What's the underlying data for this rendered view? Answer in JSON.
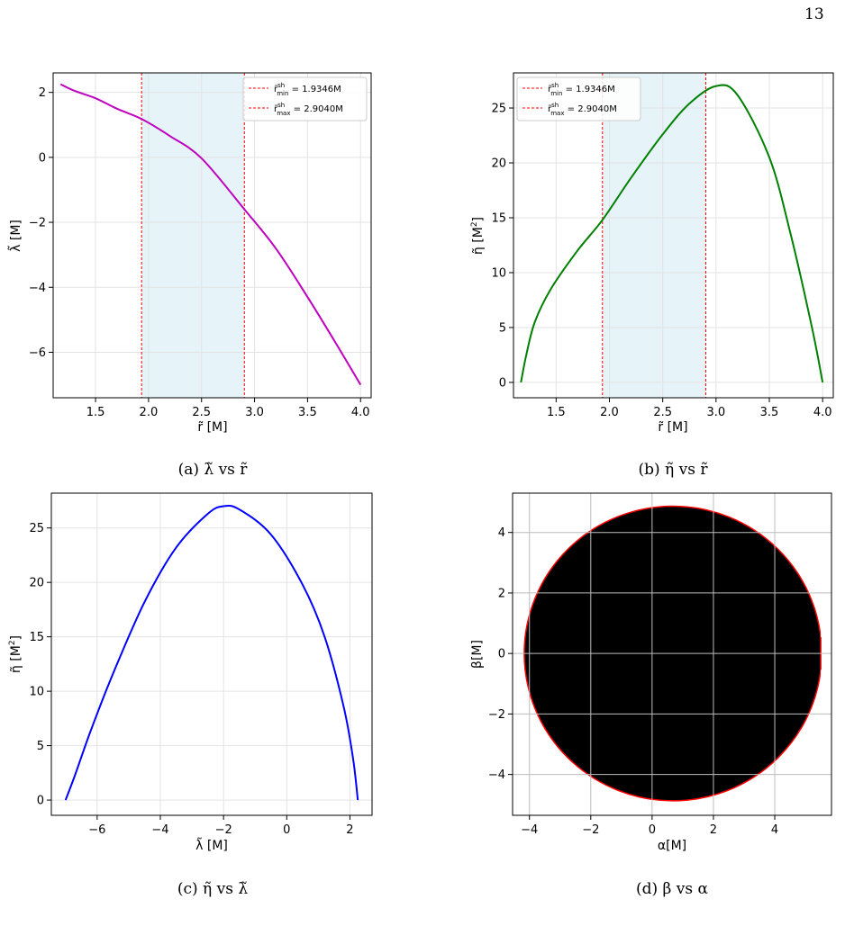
{
  "page_number": "13",
  "subfigures": [
    {
      "label": "(a)",
      "caption_y": "λ̃",
      "caption_x": "r̃"
    },
    {
      "label": "(b)",
      "caption_y": "η̃",
      "caption_x": "r̃"
    },
    {
      "label": "(c)",
      "caption_y": "η̃",
      "caption_x": "λ̃"
    },
    {
      "label": "(d)",
      "caption_y": "β",
      "caption_x": "α"
    }
  ],
  "caption_connector": "vs",
  "chart_data": [
    {
      "id": "a",
      "type": "line",
      "xlabel": "r̃ [M]",
      "ylabel": "λ̃ [M]",
      "xlim": [
        1.1,
        4.1
      ],
      "ylim": [
        -7.4,
        2.6
      ],
      "xticks": [
        1.5,
        2.0,
        2.5,
        3.0,
        3.5,
        4.0
      ],
      "yticks": [
        2,
        0,
        -2,
        -4,
        -6
      ],
      "grid": true,
      "line_color": "#bf00bf",
      "shaded_band": {
        "from": 1.9346,
        "to": 2.904,
        "color": "#e6f3f8"
      },
      "vlines": [
        {
          "x": 1.9346,
          "label_main": "r̃",
          "label_sup": "sh",
          "label_sub": "min",
          "label_value": " = 1.9346M",
          "color": "#ff0000"
        },
        {
          "x": 2.904,
          "label_main": "r̃",
          "label_sup": "sh",
          "label_sub": "max",
          "label_value": " = 2.9040M",
          "color": "#ff0000"
        }
      ],
      "legend_position": "top-right",
      "x": [
        1.17,
        1.3,
        1.5,
        1.7,
        1.9346,
        2.2,
        2.5,
        2.904,
        3.2,
        3.5,
        3.8,
        4.0
      ],
      "y": [
        2.25,
        2.05,
        1.82,
        1.5,
        1.18,
        0.66,
        -0.03,
        -1.6,
        -2.8,
        -4.3,
        -5.9,
        -7.0
      ]
    },
    {
      "id": "b",
      "type": "line",
      "xlabel": "r̃ [M]",
      "ylabel": "η̃ [M2]",
      "ylabel_main": "η̃ [M",
      "ylabel_sup": "2",
      "ylabel_end": "]",
      "xlim": [
        1.1,
        4.1
      ],
      "ylim": [
        -1.4,
        28.2
      ],
      "xticks": [
        1.5,
        2.0,
        2.5,
        3.0,
        3.5,
        4.0
      ],
      "yticks": [
        0,
        5,
        10,
        15,
        20,
        25
      ],
      "grid": true,
      "line_color": "#008000",
      "shaded_band": {
        "from": 1.9346,
        "to": 2.904,
        "color": "#e6f3f8"
      },
      "vlines": [
        {
          "x": 1.9346,
          "label_main": "r̃",
          "label_sup": "sh",
          "label_sub": "min",
          "label_value": " = 1.9346M",
          "color": "#ff0000"
        },
        {
          "x": 2.904,
          "label_main": "r̃",
          "label_sup": "sh",
          "label_sub": "max",
          "label_value": " = 2.9040M",
          "color": "#ff0000"
        }
      ],
      "legend_position": "top-left",
      "x": [
        1.17,
        1.22,
        1.3,
        1.45,
        1.7,
        1.9346,
        2.2,
        2.5,
        2.75,
        3.0,
        3.2,
        3.5,
        3.7,
        3.9,
        4.0
      ],
      "y": [
        0,
        2.5,
        5.5,
        8.5,
        12.0,
        14.8,
        18.6,
        22.6,
        25.4,
        27.0,
        26.2,
        20.5,
        13.5,
        5.0,
        0
      ]
    },
    {
      "id": "c",
      "type": "line",
      "xlabel": "λ̃ [M]",
      "ylabel": "η̃ [M2]",
      "ylabel_main": "η̃ [M",
      "ylabel_sup": "2",
      "ylabel_end": "]",
      "xlim": [
        -7.45,
        2.7
      ],
      "ylim": [
        -1.4,
        28.2
      ],
      "xticks": [
        -6,
        -4,
        -2,
        0,
        2
      ],
      "yticks": [
        0,
        5,
        10,
        15,
        20,
        25
      ],
      "grid": true,
      "line_color": "#0000ff",
      "x": [
        -7.0,
        -6.7,
        -6.2,
        -5.5,
        -4.5,
        -3.5,
        -2.5,
        -2.0,
        -1.5,
        -0.5,
        0.5,
        1.2,
        1.8,
        2.1,
        2.25
      ],
      "y": [
        0,
        2.3,
        6.4,
        11.6,
        18.2,
        23.2,
        26.3,
        27.0,
        26.7,
        24.4,
        19.8,
        15.0,
        8.6,
        3.8,
        0
      ]
    },
    {
      "id": "d",
      "type": "area",
      "xlabel": "α[M]",
      "ylabel": "β[M]",
      "xlim": [
        -4.55,
        5.85
      ],
      "ylim": [
        -5.35,
        5.3
      ],
      "xticks": [
        -4,
        -2,
        0,
        2,
        4
      ],
      "yticks": [
        4,
        2,
        0,
        -2,
        -4
      ],
      "grid": true,
      "shape": "shadow disk",
      "center": [
        0.68,
        0.0
      ],
      "radius_x": 4.85,
      "radius_y": 4.87,
      "fill_color": "#000000",
      "edge_color": "#ff0000",
      "right_flat_edge_alpha": 5.5
    }
  ]
}
